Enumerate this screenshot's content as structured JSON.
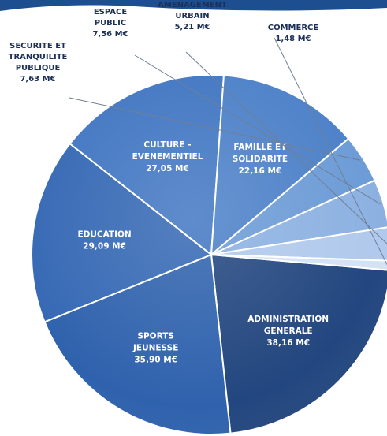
{
  "chart_data": {
    "type": "pie",
    "title": "",
    "unit": "M€",
    "slices": [
      {
        "label_lines": [
          "ADMINISTRATION",
          "GENERALE"
        ],
        "value": 38.16,
        "value_label": "38,16 M€",
        "color": "#22467f",
        "placement": "inside"
      },
      {
        "label_lines": [
          "SPORTS",
          "JEUNESSE"
        ],
        "value": 35.9,
        "value_label": "35,90 M€",
        "color": "#2f62ad",
        "placement": "inside"
      },
      {
        "label_lines": [
          "EDUCATION"
        ],
        "value": 29.09,
        "value_label": "29,09 M€",
        "color": "#3568b4",
        "placement": "inside"
      },
      {
        "label_lines": [
          "CULTURE -",
          "EVENEMENTIEL"
        ],
        "value": 27.05,
        "value_label": "27,05 M€",
        "color": "#4176c2",
        "placement": "inside"
      },
      {
        "label_lines": [
          "FAMILLE ET",
          "SOLIDARITE"
        ],
        "value": 22.16,
        "value_label": "22,16 M€",
        "color": "#4c80c8",
        "placement": "inside"
      },
      {
        "label_lines": [
          "SECURITE ET",
          "TRANQUILITE",
          "PUBLIQUE"
        ],
        "value": 7.63,
        "value_label": "7,63 M€",
        "color": "#6c9bd6",
        "placement": "outside"
      },
      {
        "label_lines": [
          "ESPACE",
          "PUBLIC"
        ],
        "value": 7.56,
        "value_label": "7,56 M€",
        "color": "#8cb1e1",
        "placement": "outside"
      },
      {
        "label_lines": [
          "AMENAGEMENT",
          "URBAIN"
        ],
        "value": 5.21,
        "value_label": "5,21 M€",
        "color": "#b0c9ec",
        "placement": "outside"
      },
      {
        "label_lines": [
          "COMMERCE"
        ],
        "value": 1.48,
        "value_label": "1,48 M€",
        "color": "#d4e2f5",
        "placement": "outside"
      }
    ],
    "legend": "none"
  },
  "colors": {
    "banner": "#1d4e8f",
    "slice_stroke": "#ffffff",
    "inner_text": "#ffffff",
    "outer_text": "#1c3057"
  }
}
